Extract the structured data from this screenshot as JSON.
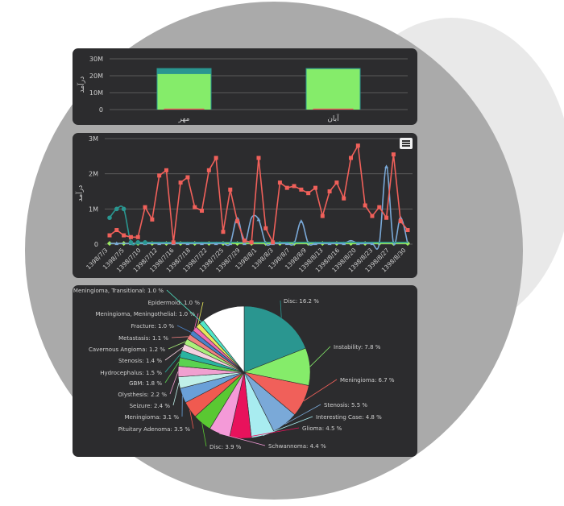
{
  "colors": {
    "panel": "#2c2c2e",
    "grid": "#5a5a5a",
    "text": "#d0d0d0",
    "red": "#f0605a",
    "green": "#85ec6a",
    "teal": "#2a9690",
    "blue": "#7aa9d8",
    "lime": "#9ef05a"
  },
  "menu_icon": "hamburger-icon",
  "chart_data": [
    {
      "type": "bar",
      "ylabel": "درآمد",
      "ytick_labels": [
        "0",
        "10M",
        "20M",
        "30M"
      ],
      "ylim": [
        0,
        30000000
      ],
      "categories": [
        "مهر",
        "آبان"
      ],
      "series": [
        {
          "color": "#2a9690",
          "values": [
            24500000,
            24500000
          ]
        },
        {
          "color": "#85ec6a",
          "values": [
            21000000,
            24000000
          ]
        },
        {
          "color": "#f0605a",
          "values": [
            600000,
            600000
          ]
        }
      ]
    },
    {
      "type": "line",
      "ylabel": "درآمد",
      "ytick_labels": [
        "0",
        "1M",
        "2M",
        "3M"
      ],
      "ylim": [
        0,
        3000000
      ],
      "x_labels": [
        "1398/7/3",
        "1398/7/5",
        "1398/7/10",
        "1398/7/12",
        "1398/7/16",
        "1398/7/18",
        "1398/7/22",
        "1398/7/25",
        "1398/7/29",
        "1398/8/1",
        "1398/8/3",
        "1398/8/7",
        "1398/8/9",
        "1398/8/13",
        "1398/8/16",
        "1398/8/20",
        "1398/8/23",
        "1398/8/27",
        "1398/8/30"
      ],
      "series": [
        {
          "color": "#f0605a",
          "values": [
            0.25,
            0.4,
            0.25,
            0.2,
            0.2,
            1.05,
            0.7,
            1.95,
            2.1,
            0.05,
            1.75,
            1.9,
            1.05,
            0.95,
            2.1,
            2.45,
            0.35,
            1.55,
            0.65,
            0.1,
            0.05,
            2.45,
            0.45,
            0.05,
            1.75,
            1.6,
            1.65,
            1.55,
            1.45,
            1.6,
            0.8,
            1.5,
            1.75,
            1.3,
            2.45,
            2.8,
            1.1,
            0.8,
            1.05,
            0.75,
            2.55,
            0.65,
            0.4
          ]
        },
        {
          "color": "#2a9690",
          "values": [
            0.75,
            1.0,
            1.0,
            0.05,
            0.05,
            0.05,
            0.05,
            0.05,
            0.05,
            0.05,
            0.05,
            0.05,
            0.05,
            0.05,
            0.05,
            0.05,
            0.05,
            0.05,
            0.05,
            0.05,
            0.05,
            0.05,
            0.05,
            0.05,
            0.05,
            0.05,
            0.05,
            0.05,
            0.05,
            0.05,
            0.05,
            0.05,
            0.05,
            0.05,
            0.05,
            0.05,
            0.05,
            0.05,
            0.05,
            0.05,
            0.05,
            0.05,
            0.05
          ]
        },
        {
          "color": "#7aa9d8",
          "values": [
            0.02,
            0.02,
            0.02,
            0.02,
            0.02,
            0.02,
            0.02,
            0.02,
            0.02,
            0.02,
            0.02,
            0.02,
            0.02,
            0.02,
            0.02,
            0.02,
            0.02,
            0.02,
            0.75,
            0.02,
            0.75,
            0.7,
            0.02,
            0.02,
            0.02,
            0.02,
            0.02,
            0.65,
            0.02,
            0.02,
            0.02,
            0.02,
            0.02,
            0.02,
            0.1,
            0.02,
            0.02,
            0.02,
            0.02,
            2.2,
            0.02,
            0.75,
            0.02
          ]
        },
        {
          "color": "#9ef05a",
          "values": [
            0.02,
            0.02,
            0.02,
            0.02,
            0.02,
            0.02,
            0.02,
            0.02,
            0.02,
            0.02,
            0.02,
            0.02,
            0.02,
            0.02,
            0.02,
            0.02,
            0.02,
            0.02,
            0.02,
            0.02,
            0.02,
            0.02,
            0.02,
            0.02,
            0.02,
            0.02,
            0.02,
            0.02,
            0.02,
            0.02,
            0.02,
            0.02,
            0.02,
            0.02,
            0.02,
            0.02,
            0.02,
            0.02,
            0.02,
            0.02,
            0.02,
            0.02,
            0.02
          ]
        }
      ]
    },
    {
      "type": "pie",
      "slices": [
        {
          "label": "Disc: 16.2 %",
          "value": 16.2,
          "color": "#2a9690"
        },
        {
          "label": "Instability: 7.8 %",
          "value": 7.8,
          "color": "#85ec6a"
        },
        {
          "label": "Meningioma: 6.7 %",
          "value": 6.7,
          "color": "#f0605a"
        },
        {
          "label": "Stenosis: 5.5 %",
          "value": 5.5,
          "color": "#7aa9d8"
        },
        {
          "label": "Interesting Case: 4.8 %",
          "value": 4.8,
          "color": "#a8ecf0"
        },
        {
          "label": "Glioma: 4.5 %",
          "value": 4.5,
          "color": "#e8125c"
        },
        {
          "label": "Schwannoma: 4.4 %",
          "value": 4.4,
          "color": "#f49ad8"
        },
        {
          "label": "Disc: 3.9 %",
          "value": 3.9,
          "color": "#5ac832"
        },
        {
          "label": "Pituitary Adenoma: 3.5 %",
          "value": 3.5,
          "color": "#f05a50"
        },
        {
          "label": "Meningioma: 3.1 %",
          "value": 3.1,
          "color": "#6aa0d8"
        },
        {
          "label": "Seizure: 2.4 %",
          "value": 2.4,
          "color": "#c0f0e8"
        },
        {
          "label": "Olysthesis: 2.2 %",
          "value": 2.2,
          "color": "#f0a0d0"
        },
        {
          "label": "GBM: 1.8 %",
          "value": 1.8,
          "color": "#5ad250"
        },
        {
          "label": "Hydrocephalus: 1.5 %",
          "value": 1.5,
          "color": "#2ab4a0"
        },
        {
          "label": "Stenosis: 1.4 %",
          "value": 1.4,
          "color": "#f5d0e0"
        },
        {
          "label": "Cavernous Angioma: 1.2 %",
          "value": 1.2,
          "color": "#aaf07a"
        },
        {
          "label": "Metastasis: 1.1 %",
          "value": 1.1,
          "color": "#f08080"
        },
        {
          "label": "Fracture: 1.0 %",
          "value": 1.0,
          "color": "#4a82c8"
        },
        {
          "label": "Meningioma, Meningothelial: 1.0 %",
          "value": 1.0,
          "color": "#f06ab0"
        },
        {
          "label": "Epidermoid: 1.0 %",
          "value": 1.0,
          "color": "#e8e85a"
        },
        {
          "label": "Meningioma, Transitional: 1.0 %",
          "value": 1.0,
          "color": "#50e8c8"
        },
        {
          "label": "",
          "value": 9.0,
          "color": "#ffffff"
        }
      ]
    }
  ]
}
